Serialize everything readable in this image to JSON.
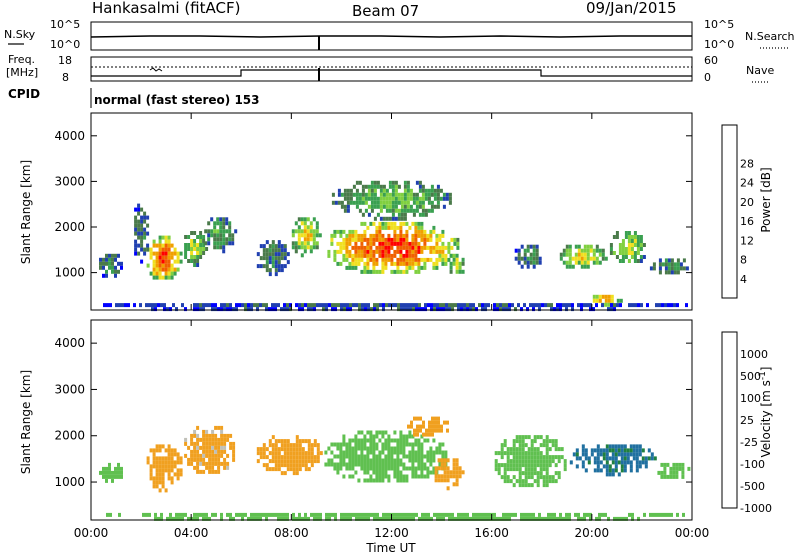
{
  "header": {
    "station": "Hankasalmi (fitACF)",
    "beam": "Beam 07",
    "date": "09/Jan/2015"
  },
  "top_panels": {
    "nsky_label": "N.Sky",
    "nsky_ticks": [
      "10^5",
      "10^0"
    ],
    "nsearch_label": "N.Search",
    "nsearch_ticks": [
      "10^5",
      "10^0"
    ],
    "freq_label_line1": "Freq.",
    "freq_label_line2": "[MHz]",
    "freq_ticks": [
      "18",
      "8"
    ],
    "nave_label": "Nave",
    "nave_ticks": [
      "60",
      "0"
    ],
    "cpid_label": "CPID",
    "cpid_text": "normal (fast stereo) 153"
  },
  "colors": {
    "power": [
      "#0000ff",
      "#2040b0",
      "#4a7a4a",
      "#3aa050",
      "#80d040",
      "#f0e020",
      "#f0a000",
      "#f06000",
      "#ff0000"
    ],
    "velocity": [
      "#1040d0",
      "#2070a0",
      "#208040",
      "#60c050",
      "#c0c0b8",
      "#f0a020",
      "#f07010",
      "#ff0000"
    ],
    "ground_scatter": "#c0c0b8"
  },
  "chart_data": [
    {
      "type": "heatmap",
      "name": "power",
      "ylabel": "Slant Range [km]",
      "xlabel": "Time UT",
      "xlim": [
        0,
        24
      ],
      "ylim": [
        180,
        4500
      ],
      "x_ticks": [
        "00:00",
        "04:00",
        "08:00",
        "12:00",
        "16:00",
        "20:00",
        "00:00"
      ],
      "y_ticks": [
        "1000",
        "2000",
        "3000",
        "4000"
      ],
      "colorbar_label": "Power [dB]",
      "colorbar_ticks": [
        "4",
        "8",
        "12",
        "16",
        "20",
        "24",
        "28"
      ],
      "colorbar_range": [
        0,
        30
      ],
      "blobs": [
        {
          "x0": 2.1,
          "x1": 3.6,
          "y0": 850,
          "y1": 1900,
          "v": 26
        },
        {
          "x0": 3.6,
          "x1": 4.6,
          "y0": 1200,
          "y1": 2000,
          "v": 16
        },
        {
          "x0": 4.4,
          "x1": 5.8,
          "y0": 1500,
          "y1": 2300,
          "v": 12
        },
        {
          "x0": 0.2,
          "x1": 1.2,
          "y0": 900,
          "y1": 1500,
          "v": 10
        },
        {
          "x0": 1.6,
          "x1": 2.3,
          "y0": 1200,
          "y1": 2600,
          "v": 8
        },
        {
          "x0": 6.5,
          "x1": 7.9,
          "y0": 1000,
          "y1": 1800,
          "v": 9
        },
        {
          "x0": 7.9,
          "x1": 9.2,
          "y0": 1400,
          "y1": 2300,
          "v": 20
        },
        {
          "x0": 9.2,
          "x1": 14.7,
          "y0": 1000,
          "y1": 2200,
          "v": 27
        },
        {
          "x0": 9.5,
          "x1": 14.4,
          "y0": 2200,
          "y1": 3100,
          "v": 14
        },
        {
          "x0": 14.2,
          "x1": 14.9,
          "y0": 900,
          "y1": 1500,
          "v": 16
        },
        {
          "x0": 16.8,
          "x1": 18.0,
          "y0": 1100,
          "y1": 1700,
          "v": 9
        },
        {
          "x0": 18.6,
          "x1": 20.6,
          "y0": 1100,
          "y1": 1700,
          "v": 18
        },
        {
          "x0": 20.6,
          "x1": 22.2,
          "y0": 1200,
          "y1": 2000,
          "v": 17
        },
        {
          "x0": 22.2,
          "x1": 23.9,
          "y0": 1000,
          "y1": 1400,
          "v": 10
        },
        {
          "x0": 19.8,
          "x1": 21.2,
          "y0": 300,
          "y1": 600,
          "v": 22
        },
        {
          "x0": 0.0,
          "x1": 24.0,
          "y0": 200,
          "y1": 420,
          "v": 6
        }
      ]
    },
    {
      "type": "heatmap",
      "name": "velocity",
      "ylabel": "Slant Range [km]",
      "xlabel": "Time UT",
      "xlim": [
        0,
        24
      ],
      "ylim": [
        180,
        4500
      ],
      "x_ticks": [
        "00:00",
        "04:00",
        "08:00",
        "12:00",
        "16:00",
        "20:00",
        "00:00"
      ],
      "y_ticks": [
        "1000",
        "2000",
        "3000",
        "4000"
      ],
      "colorbar_label": "Velocity [m s-1]",
      "colorbar_ticks": [
        "1000",
        "500",
        "100",
        "25",
        "-25",
        "-100",
        "-500",
        "-1000"
      ],
      "blobs": [
        {
          "x0": 2.1,
          "x1": 3.6,
          "y0": 850,
          "y1": 1900,
          "v": -300
        },
        {
          "x0": 3.6,
          "x1": 5.8,
          "y0": 1200,
          "y1": 2300,
          "v": -150
        },
        {
          "x0": 0.2,
          "x1": 1.2,
          "y0": 1000,
          "y1": 1500,
          "v": 0
        },
        {
          "x0": 6.5,
          "x1": 9.2,
          "y0": 1200,
          "y1": 2100,
          "v": -200
        },
        {
          "x0": 9.2,
          "x1": 14.3,
          "y0": 1000,
          "y1": 2200,
          "v": 0
        },
        {
          "x0": 12.5,
          "x1": 14.3,
          "y0": 2000,
          "y1": 2500,
          "v": -200
        },
        {
          "x0": 13.6,
          "x1": 14.8,
          "y0": 900,
          "y1": 1600,
          "v": -300
        },
        {
          "x0": 16.0,
          "x1": 19.0,
          "y0": 900,
          "y1": 2100,
          "v": 0
        },
        {
          "x0": 19.0,
          "x1": 22.5,
          "y0": 1200,
          "y1": 1900,
          "v": 150
        },
        {
          "x0": 22.5,
          "x1": 23.9,
          "y0": 1100,
          "y1": 1500,
          "v": 0
        },
        {
          "x0": 0.0,
          "x1": 24.0,
          "y0": 200,
          "y1": 420,
          "v": 0
        }
      ]
    }
  ]
}
